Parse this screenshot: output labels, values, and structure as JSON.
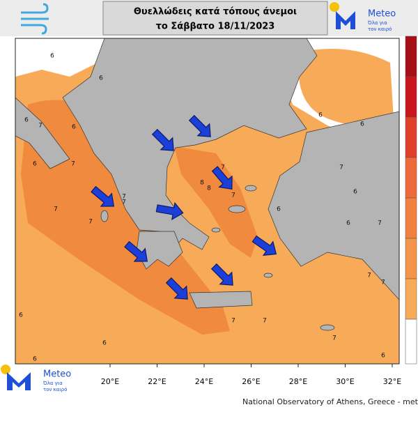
{
  "header": {
    "title_line1": "Θυελλώδεις κατά τόπους άνεμοι",
    "title_line2": "το Σάββατο 18/11/2023"
  },
  "logo_top": {
    "name": "Meteo",
    "tagline": [
      "Όλα για",
      "τον καιρό"
    ]
  },
  "logo_bottom": {
    "name": "Meteo",
    "tagline": [
      "Όλα για",
      "τον καιρό"
    ]
  },
  "map": {
    "lon_labels": [
      "20°E",
      "22°E",
      "24°E",
      "26°E",
      "28°E",
      "30°E",
      "32°E"
    ],
    "contour_labels": [
      "6",
      "6",
      "6",
      "6",
      "7",
      "7",
      "6",
      "7",
      "6",
      "7",
      "7",
      "8",
      "7",
      "8",
      "7",
      "7",
      "6",
      "6",
      "7",
      "6",
      "7",
      "6",
      "7",
      "7",
      "6",
      "7",
      "6",
      "6",
      "6",
      "7",
      "6",
      "7"
    ]
  },
  "footer": "National Observatory of Athens, Greece - mete"
}
